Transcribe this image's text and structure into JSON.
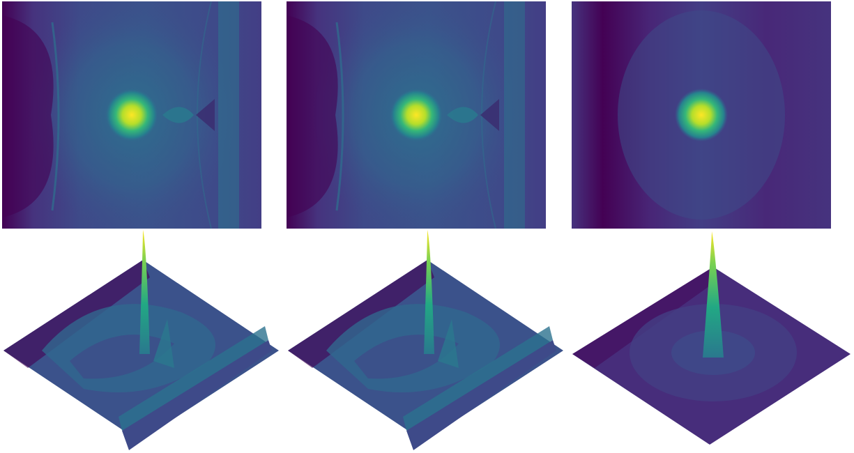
{
  "figure": {
    "colormap": "viridis",
    "palette": {
      "dark": "#440154",
      "deep_purple": "#46337e",
      "indigo": "#3e4a89",
      "blue": "#31688e",
      "teal": "#26828e",
      "green": "#35b779",
      "lime": "#90d743",
      "yellow": "#fde725"
    },
    "panels": [
      {
        "kind": "heatmap",
        "column": 1,
        "shows_wavefronts": true,
        "shows_vertical_band": true,
        "shows_secondary_lobe": true
      },
      {
        "kind": "heatmap",
        "column": 2,
        "shows_wavefronts": true,
        "shows_vertical_band": true,
        "shows_secondary_lobe": true
      },
      {
        "kind": "heatmap",
        "column": 3,
        "shows_wavefronts": false,
        "shows_vertical_band": false,
        "shows_secondary_lobe": false
      },
      {
        "kind": "surface-3d",
        "column": 1,
        "rough": true
      },
      {
        "kind": "surface-3d",
        "column": 2,
        "rough": true
      },
      {
        "kind": "surface-3d",
        "column": 3,
        "rough": false
      }
    ]
  }
}
